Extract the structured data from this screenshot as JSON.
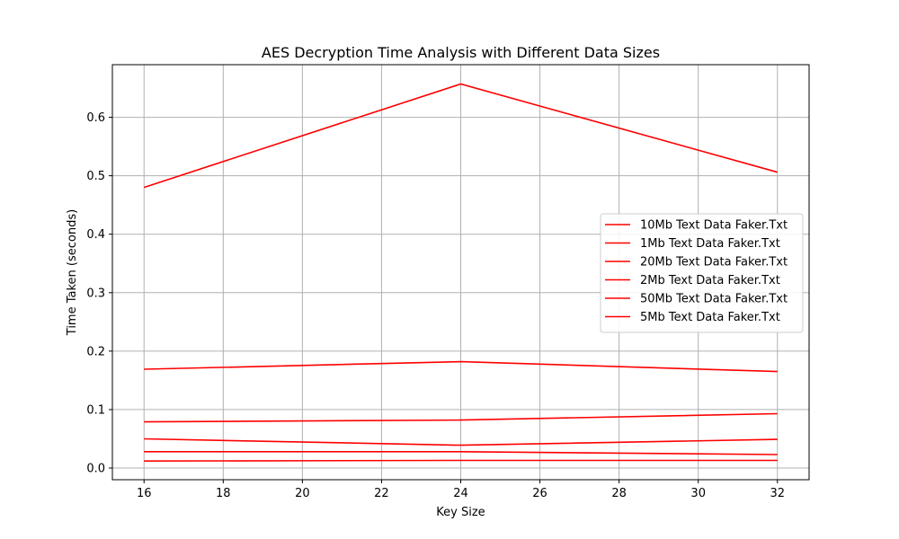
{
  "chart_data": {
    "type": "line",
    "title": "AES Decryption Time Analysis with Different Data Sizes",
    "xlabel": "Key Size",
    "ylabel": "Time Taken (seconds)",
    "xlim": [
      15.2,
      32.8
    ],
    "ylim": [
      -0.02,
      0.69
    ],
    "x_ticks": [
      16,
      18,
      20,
      22,
      24,
      26,
      28,
      30,
      32
    ],
    "y_ticks": [
      0.0,
      0.1,
      0.2,
      0.3,
      0.4,
      0.5,
      0.6
    ],
    "y_tick_labels": [
      "0.0",
      "0.1",
      "0.2",
      "0.3",
      "0.4",
      "0.5",
      "0.6"
    ],
    "grid": true,
    "legend_position": "center-right",
    "x": [
      16,
      24,
      32
    ],
    "series": [
      {
        "name": "10Mb Text Data Faker.Txt",
        "color": "#ff0000",
        "values": [
          0.05,
          0.039,
          0.049
        ]
      },
      {
        "name": "1Mb Text Data Faker.Txt",
        "color": "#ff0000",
        "values": [
          0.012,
          0.013,
          0.013
        ]
      },
      {
        "name": "20Mb Text Data Faker.Txt",
        "color": "#ff0000",
        "values": [
          0.079,
          0.082,
          0.093
        ]
      },
      {
        "name": "2Mb Text Data Faker.Txt",
        "color": "#ff0000",
        "values": [
          0.028,
          0.028,
          0.023
        ]
      },
      {
        "name": "50Mb Text Data Faker.Txt",
        "color": "#ff0000",
        "values": [
          0.48,
          0.657,
          0.506
        ]
      },
      {
        "name": "5Mb Text Data Faker.Txt",
        "color": "#ff0000",
        "values": [
          0.169,
          0.182,
          0.165
        ]
      }
    ]
  }
}
